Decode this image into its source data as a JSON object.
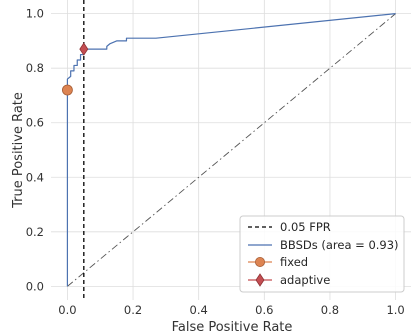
{
  "chart_data": {
    "type": "line",
    "xlabel": "False Positive Rate",
    "ylabel": "True Positive Rate",
    "xlim": [
      -0.05,
      1.05
    ],
    "ylim": [
      -0.05,
      1.05
    ],
    "x_ticks": [
      "0.0",
      "0.2",
      "0.4",
      "0.6",
      "0.8",
      "1.0"
    ],
    "y_ticks": [
      "0.0",
      "0.2",
      "0.4",
      "0.6",
      "0.8",
      "1.0"
    ],
    "grid": true,
    "legend_position": "lower right",
    "fpr_line": {
      "x": 0.05,
      "label": "0.05 FPR",
      "color": "#000000",
      "style": "dashed"
    },
    "diagonal": {
      "x": [
        0,
        1
      ],
      "y": [
        0,
        1
      ],
      "color": "#555555",
      "style": "dash-dot"
    },
    "series": [
      {
        "name": "BBSDs (area = 0.93)",
        "color": "#4c72b0",
        "x": [
          0.0,
          0.0,
          0.0,
          0.0,
          0.01,
          0.01,
          0.02,
          0.02,
          0.03,
          0.03,
          0.04,
          0.04,
          0.05,
          0.05,
          0.07,
          0.12,
          0.12,
          0.13,
          0.15,
          0.18,
          0.18,
          0.2,
          0.27,
          1.0
        ],
        "y": [
          0.0,
          0.64,
          0.72,
          0.76,
          0.77,
          0.79,
          0.79,
          0.81,
          0.81,
          0.83,
          0.83,
          0.85,
          0.85,
          0.87,
          0.87,
          0.87,
          0.88,
          0.89,
          0.9,
          0.9,
          0.91,
          0.91,
          0.91,
          1.0
        ]
      },
      {
        "name": "fixed",
        "color": "#dd8452",
        "marker": "circle",
        "x": [
          0.0
        ],
        "y": [
          0.72
        ]
      },
      {
        "name": "adaptive",
        "color": "#c44e52",
        "marker": "diamond",
        "x": [
          0.05
        ],
        "y": [
          0.87
        ]
      }
    ]
  }
}
